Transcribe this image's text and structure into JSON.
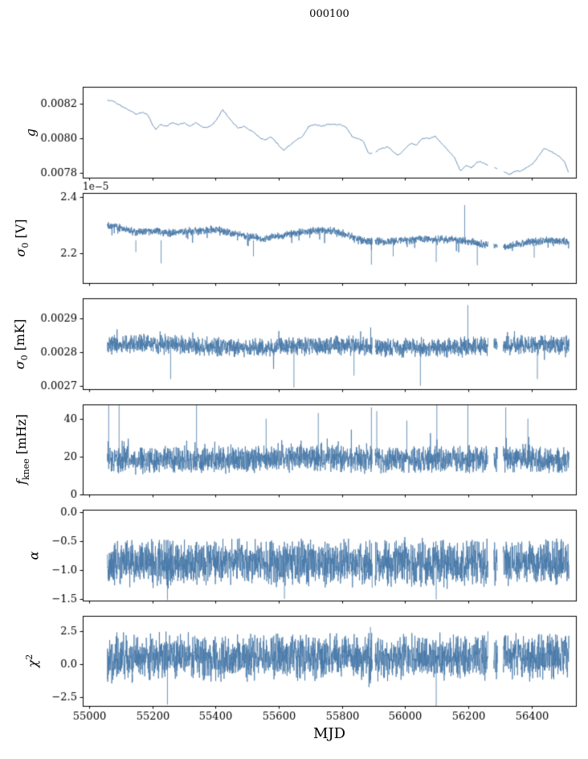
{
  "chart_data": {
    "type": "line",
    "title": "000100",
    "xlabel": "MJD",
    "line_color": "#4878a8",
    "x_axis": {
      "xlim": [
        54980,
        56540
      ],
      "ticks": [
        55000,
        55200,
        55400,
        55600,
        55800,
        56000,
        56200,
        56400
      ],
      "tick_labels": [
        "55000",
        "55200",
        "55400",
        "55600",
        "55800",
        "56000",
        "56200",
        "56400"
      ],
      "data_range": [
        55058,
        56518
      ],
      "gaps": [
        [
          55896,
          55904
        ],
        [
          56262,
          56280
        ],
        [
          56292,
          56310
        ]
      ]
    },
    "panels": [
      {
        "name": "g",
        "label_text": "g",
        "ylabel": {
          "var": "g",
          "sub": "",
          "sup": "",
          "unit": ""
        },
        "ylim": [
          0.00777,
          0.0083
        ],
        "yticks": [
          0.0078,
          0.008,
          0.0082
        ],
        "ytick_labels": [
          "0.0078",
          "0.0080",
          "0.0082"
        ],
        "offset_label": "",
        "dx": 3,
        "noise": {
          "seed": 11,
          "amp": 4.5e-06,
          "extra_p": 0,
          "extra_amp": 0,
          "extra_sign": 0
        },
        "baseline": [
          [
            55058,
            0.00822
          ],
          [
            55075,
            0.00822
          ],
          [
            55090,
            0.0082
          ],
          [
            55110,
            0.00818
          ],
          [
            55130,
            0.00816
          ],
          [
            55150,
            0.00814
          ],
          [
            55168,
            0.00815
          ],
          [
            55185,
            0.00814
          ],
          [
            55198,
            0.00809
          ],
          [
            55210,
            0.00805
          ],
          [
            55225,
            0.00808
          ],
          [
            55245,
            0.00807
          ],
          [
            55262,
            0.00809
          ],
          [
            55280,
            0.00808
          ],
          [
            55300,
            0.00809
          ],
          [
            55320,
            0.00807
          ],
          [
            55338,
            0.00809
          ],
          [
            55355,
            0.00807
          ],
          [
            55372,
            0.00806
          ],
          [
            55390,
            0.00808
          ],
          [
            55408,
            0.00812
          ],
          [
            55422,
            0.00817
          ],
          [
            55438,
            0.00813
          ],
          [
            55455,
            0.00809
          ],
          [
            55472,
            0.00806
          ],
          [
            55490,
            0.00807
          ],
          [
            55508,
            0.00805
          ],
          [
            55525,
            0.00803
          ],
          [
            55542,
            0.008
          ],
          [
            55558,
            0.00799
          ],
          [
            55575,
            0.00801
          ],
          [
            55595,
            0.00797
          ],
          [
            55615,
            0.00793
          ],
          [
            55635,
            0.00796
          ],
          [
            55655,
            0.00799
          ],
          [
            55675,
            0.00801
          ],
          [
            55695,
            0.00807
          ],
          [
            55715,
            0.00808
          ],
          [
            55735,
            0.00807
          ],
          [
            55755,
            0.00808
          ],
          [
            55775,
            0.00808
          ],
          [
            55795,
            0.00808
          ],
          [
            55815,
            0.00806
          ],
          [
            55832,
            0.00801
          ],
          [
            55850,
            0.008
          ],
          [
            55868,
            0.00798
          ],
          [
            55885,
            0.00791
          ],
          [
            55905,
            0.00792
          ],
          [
            55925,
            0.00794
          ],
          [
            55945,
            0.00795
          ],
          [
            55962,
            0.00792
          ],
          [
            55980,
            0.0079
          ],
          [
            56000,
            0.00794
          ],
          [
            56018,
            0.00797
          ],
          [
            56035,
            0.00796
          ],
          [
            56055,
            0.008
          ],
          [
            56075,
            0.008
          ],
          [
            56095,
            0.00801
          ],
          [
            56115,
            0.00797
          ],
          [
            56135,
            0.00793
          ],
          [
            56155,
            0.00789
          ],
          [
            56175,
            0.00781
          ],
          [
            56192,
            0.00784
          ],
          [
            56210,
            0.00783
          ],
          [
            56228,
            0.00786
          ],
          [
            56245,
            0.00786
          ],
          [
            56262,
            0.00784
          ],
          [
            56280,
            0.00783
          ],
          [
            56298,
            0.00782
          ],
          [
            56315,
            0.0078
          ],
          [
            56332,
            0.00779
          ],
          [
            56350,
            0.00781
          ],
          [
            56368,
            0.00781
          ],
          [
            56385,
            0.00783
          ],
          [
            56402,
            0.00785
          ],
          [
            56420,
            0.00789
          ],
          [
            56438,
            0.00794
          ],
          [
            56455,
            0.00793
          ],
          [
            56472,
            0.00791
          ],
          [
            56490,
            0.00789
          ],
          [
            56505,
            0.00786
          ],
          [
            56518,
            0.00779
          ]
        ],
        "spikes": []
      },
      {
        "name": "sigma0_V",
        "label_text": "σ0 [V]",
        "ylabel": {
          "var": "σ",
          "sub": "0",
          "sup": "",
          "unit": " [V]"
        },
        "ylim": [
          2.095e-05,
          2.415e-05
        ],
        "yticks": [
          2.2e-05,
          2.4e-05
        ],
        "ytick_labels": [
          "2.2",
          "2.4"
        ],
        "offset_label": "1e−5",
        "dx": 0.6,
        "noise": {
          "seed": 22,
          "amp": 1.6e-07,
          "extra_p": 0.02,
          "extra_amp": 4.5e-07,
          "extra_sign": -1
        },
        "baseline": [
          [
            55058,
            2.305e-05
          ],
          [
            55100,
            2.29e-05
          ],
          [
            55150,
            2.275e-05
          ],
          [
            55200,
            2.28e-05
          ],
          [
            55250,
            2.272e-05
          ],
          [
            55300,
            2.278e-05
          ],
          [
            55350,
            2.28e-05
          ],
          [
            55400,
            2.285e-05
          ],
          [
            55450,
            2.272e-05
          ],
          [
            55500,
            2.262e-05
          ],
          [
            55550,
            2.252e-05
          ],
          [
            55600,
            2.262e-05
          ],
          [
            55650,
            2.272e-05
          ],
          [
            55700,
            2.28e-05
          ],
          [
            55750,
            2.282e-05
          ],
          [
            55800,
            2.272e-05
          ],
          [
            55850,
            2.252e-05
          ],
          [
            55900,
            2.242e-05
          ],
          [
            55950,
            2.242e-05
          ],
          [
            56000,
            2.247e-05
          ],
          [
            56050,
            2.252e-05
          ],
          [
            56100,
            2.25e-05
          ],
          [
            56150,
            2.25e-05
          ],
          [
            56200,
            2.242e-05
          ],
          [
            56250,
            2.232e-05
          ],
          [
            56300,
            2.222e-05
          ],
          [
            56350,
            2.232e-05
          ],
          [
            56400,
            2.242e-05
          ],
          [
            56450,
            2.247e-05
          ],
          [
            56518,
            2.242e-05
          ]
        ],
        "spikes": [
          {
            "x": 55148,
            "y": 2.205e-05
          },
          {
            "x": 55228,
            "y": 2.165e-05
          },
          {
            "x": 55520,
            "y": 2.19e-05
          },
          {
            "x": 55893,
            "y": 2.16e-05
          },
          {
            "x": 55962,
            "y": 2.19e-05
          },
          {
            "x": 56098,
            "y": 2.17e-05
          },
          {
            "x": 56188,
            "y": 2.372e-05
          },
          {
            "x": 56228,
            "y": 2.158e-05
          },
          {
            "x": 56408,
            "y": 2.185e-05
          }
        ]
      },
      {
        "name": "sigma0_mK",
        "label_text": "σ0 [mK]",
        "ylabel": {
          "var": "σ",
          "sub": "0",
          "sup": "",
          "unit": " [mK]"
        },
        "ylim": [
          0.00269,
          0.00296
        ],
        "yticks": [
          0.0027,
          0.0028,
          0.0029
        ],
        "ytick_labels": [
          "0.0027",
          "0.0028",
          "0.0029"
        ],
        "offset_label": "",
        "dx": 0.6,
        "noise": {
          "seed": 33,
          "amp": 3.2e-05,
          "extra_p": 0.015,
          "extra_amp": 5e-05,
          "extra_sign": 0
        },
        "baseline": [
          [
            55058,
            0.00282
          ],
          [
            55200,
            0.002825
          ],
          [
            55350,
            0.002818
          ],
          [
            55500,
            0.002812
          ],
          [
            55650,
            0.002818
          ],
          [
            55800,
            0.002822
          ],
          [
            55950,
            0.002812
          ],
          [
            56100,
            0.002812
          ],
          [
            56250,
            0.002818
          ],
          [
            56400,
            0.002822
          ],
          [
            56518,
            0.00282
          ]
        ],
        "spikes": [
          {
            "x": 55258,
            "y": 0.00272
          },
          {
            "x": 55648,
            "y": 0.002695
          },
          {
            "x": 55838,
            "y": 0.00273
          },
          {
            "x": 56048,
            "y": 0.0027
          },
          {
            "x": 56198,
            "y": 0.00294
          },
          {
            "x": 56418,
            "y": 0.00272
          }
        ]
      },
      {
        "name": "f_knee",
        "label_text": "fknee [mHz]",
        "ylabel": {
          "var": "f",
          "sub": "knee",
          "sup": "",
          "unit": " [mHz]"
        },
        "ylim": [
          0,
          47.5
        ],
        "yticks": [
          0,
          20,
          40
        ],
        "ytick_labels": [
          "0",
          "20",
          "40"
        ],
        "offset_label": "",
        "dx": 0.6,
        "noise": {
          "seed": 44,
          "amp": 8,
          "extra_p": 0.03,
          "extra_amp": 10,
          "extra_sign": 1
        },
        "baseline": [
          [
            55058,
            18
          ],
          [
            55400,
            18.5
          ],
          [
            55700,
            19
          ],
          [
            56000,
            18
          ],
          [
            56300,
            19
          ],
          [
            56518,
            18.5
          ]
        ],
        "spikes": [
          {
            "x": 55062,
            "y": 47
          },
          {
            "x": 55095,
            "y": 47
          },
          {
            "x": 55340,
            "y": 47.5
          },
          {
            "x": 55560,
            "y": 40
          },
          {
            "x": 55725,
            "y": 43
          },
          {
            "x": 55893,
            "y": 46
          },
          {
            "x": 55910,
            "y": 44
          },
          {
            "x": 56005,
            "y": 39
          },
          {
            "x": 56100,
            "y": 47.5
          },
          {
            "x": 56198,
            "y": 47
          },
          {
            "x": 56318,
            "y": 46
          },
          {
            "x": 56388,
            "y": 40
          }
        ]
      },
      {
        "name": "alpha",
        "label_text": "α",
        "ylabel": {
          "var": "α",
          "sub": "",
          "sup": "",
          "unit": ""
        },
        "ylim": [
          -1.53,
          0.04
        ],
        "yticks": [
          0.0,
          -0.5,
          -1.0,
          -1.5
        ],
        "ytick_labels": [
          "0.0",
          "−0.5",
          "−1.0",
          "−1.5"
        ],
        "offset_label": "",
        "dx": 0.6,
        "noise": {
          "seed": 55,
          "amp": 0.45,
          "extra_p": 0.02,
          "extra_amp": 0.25,
          "extra_sign": 0
        },
        "baseline": [
          [
            55058,
            -0.875
          ],
          [
            56518,
            -0.875
          ]
        ],
        "spikes": [
          {
            "x": 55248,
            "y": -1.52
          },
          {
            "x": 55618,
            "y": -1.5
          },
          {
            "x": 56098,
            "y": -1.51
          }
        ]
      },
      {
        "name": "chi2",
        "label_text": "χ2",
        "ylabel": {
          "var": "χ",
          "sub": "",
          "sup": "2",
          "unit": ""
        },
        "ylim": [
          -3.2,
          3.7
        ],
        "yticks": [
          2.5,
          0.0,
          -2.5
        ],
        "ytick_labels": [
          "2.5",
          "0.0",
          "−2.5"
        ],
        "offset_label": "",
        "dx": 0.6,
        "noise": {
          "seed": 66,
          "amp": 2.0,
          "extra_p": 0.03,
          "extra_amp": 0.8,
          "extra_sign": 0
        },
        "baseline": [
          [
            55058,
            0.55
          ],
          [
            56518,
            0.55
          ]
        ],
        "spikes": [
          {
            "x": 55248,
            "y": -3.1
          },
          {
            "x": 55890,
            "y": 2.85
          },
          {
            "x": 56098,
            "y": -3.2
          }
        ]
      }
    ]
  }
}
